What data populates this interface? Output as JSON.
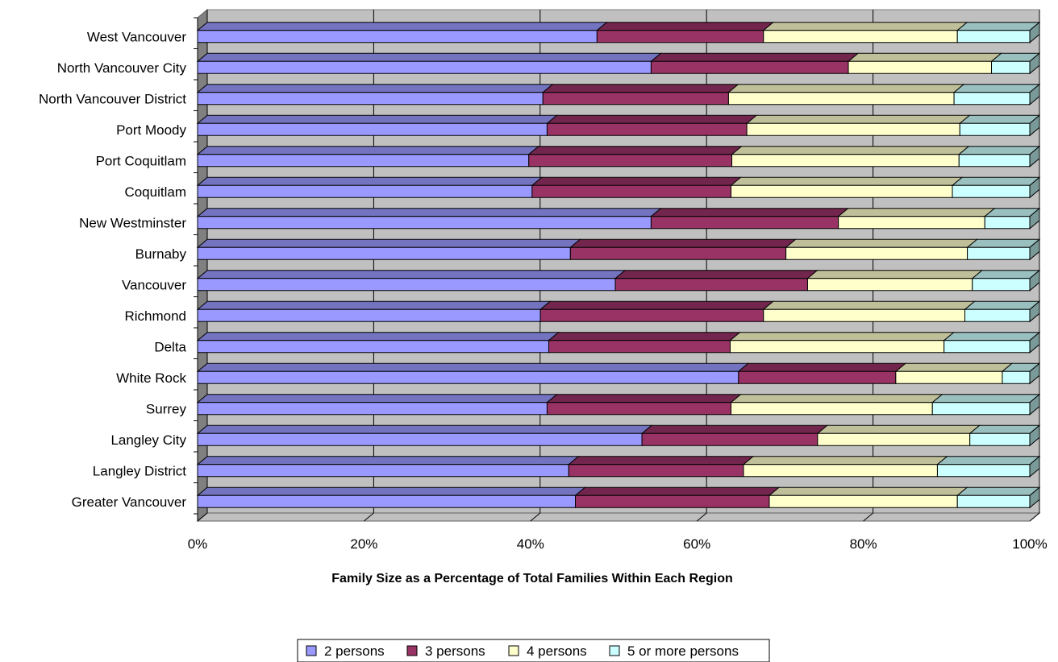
{
  "chart_data": {
    "type": "bar",
    "orientation": "horizontal",
    "stacked": "percent",
    "three_d": true,
    "categories": [
      "West Vancouver",
      "North Vancouver City",
      "North Vancouver District",
      "Port Moody",
      "Port Coquitlam",
      "Coquitlam",
      "New Westminster",
      "Burnaby",
      "Vancouver",
      "Richmond",
      "Delta",
      "White Rock",
      "Surrey",
      "Langley City",
      "Langley District",
      "Greater Vancouver"
    ],
    "series": [
      {
        "name": "2 persons",
        "color": "#9999ff",
        "values": [
          48,
          54.5,
          41.5,
          42,
          39.8,
          40.2,
          54.5,
          44.8,
          50.2,
          41.2,
          42.2,
          65,
          42,
          53.4,
          44.6,
          45.4
        ]
      },
      {
        "name": "3 persons",
        "color": "#993366",
        "values": [
          20,
          23.7,
          22.3,
          24,
          24.4,
          23.9,
          22.5,
          25.9,
          23.1,
          26.8,
          21.8,
          18.9,
          22.1,
          21.1,
          21,
          23.3
        ]
      },
      {
        "name": "4 persons",
        "color": "#ffffcc",
        "values": [
          23.3,
          17.2,
          27.1,
          25.6,
          27.3,
          26.6,
          17.6,
          21.8,
          19.8,
          24.2,
          25.7,
          12.8,
          24.2,
          18.3,
          23.3,
          22.6
        ]
      },
      {
        "name": "5 or more persons",
        "color": "#ccffff",
        "values": [
          8.7,
          4.6,
          9.1,
          8.4,
          8.5,
          9.3,
          5.4,
          7.5,
          6.9,
          7.8,
          10.3,
          3.3,
          11.7,
          7.2,
          11.1,
          8.7
        ]
      }
    ],
    "xlim": [
      0,
      100
    ],
    "x_ticks": [
      "0%",
      "20%",
      "40%",
      "60%",
      "80%",
      "100%"
    ],
    "xlabel": "Family Size as a Percentage of Total Families Within Each Region",
    "grid": true,
    "legend_position": "bottom"
  }
}
